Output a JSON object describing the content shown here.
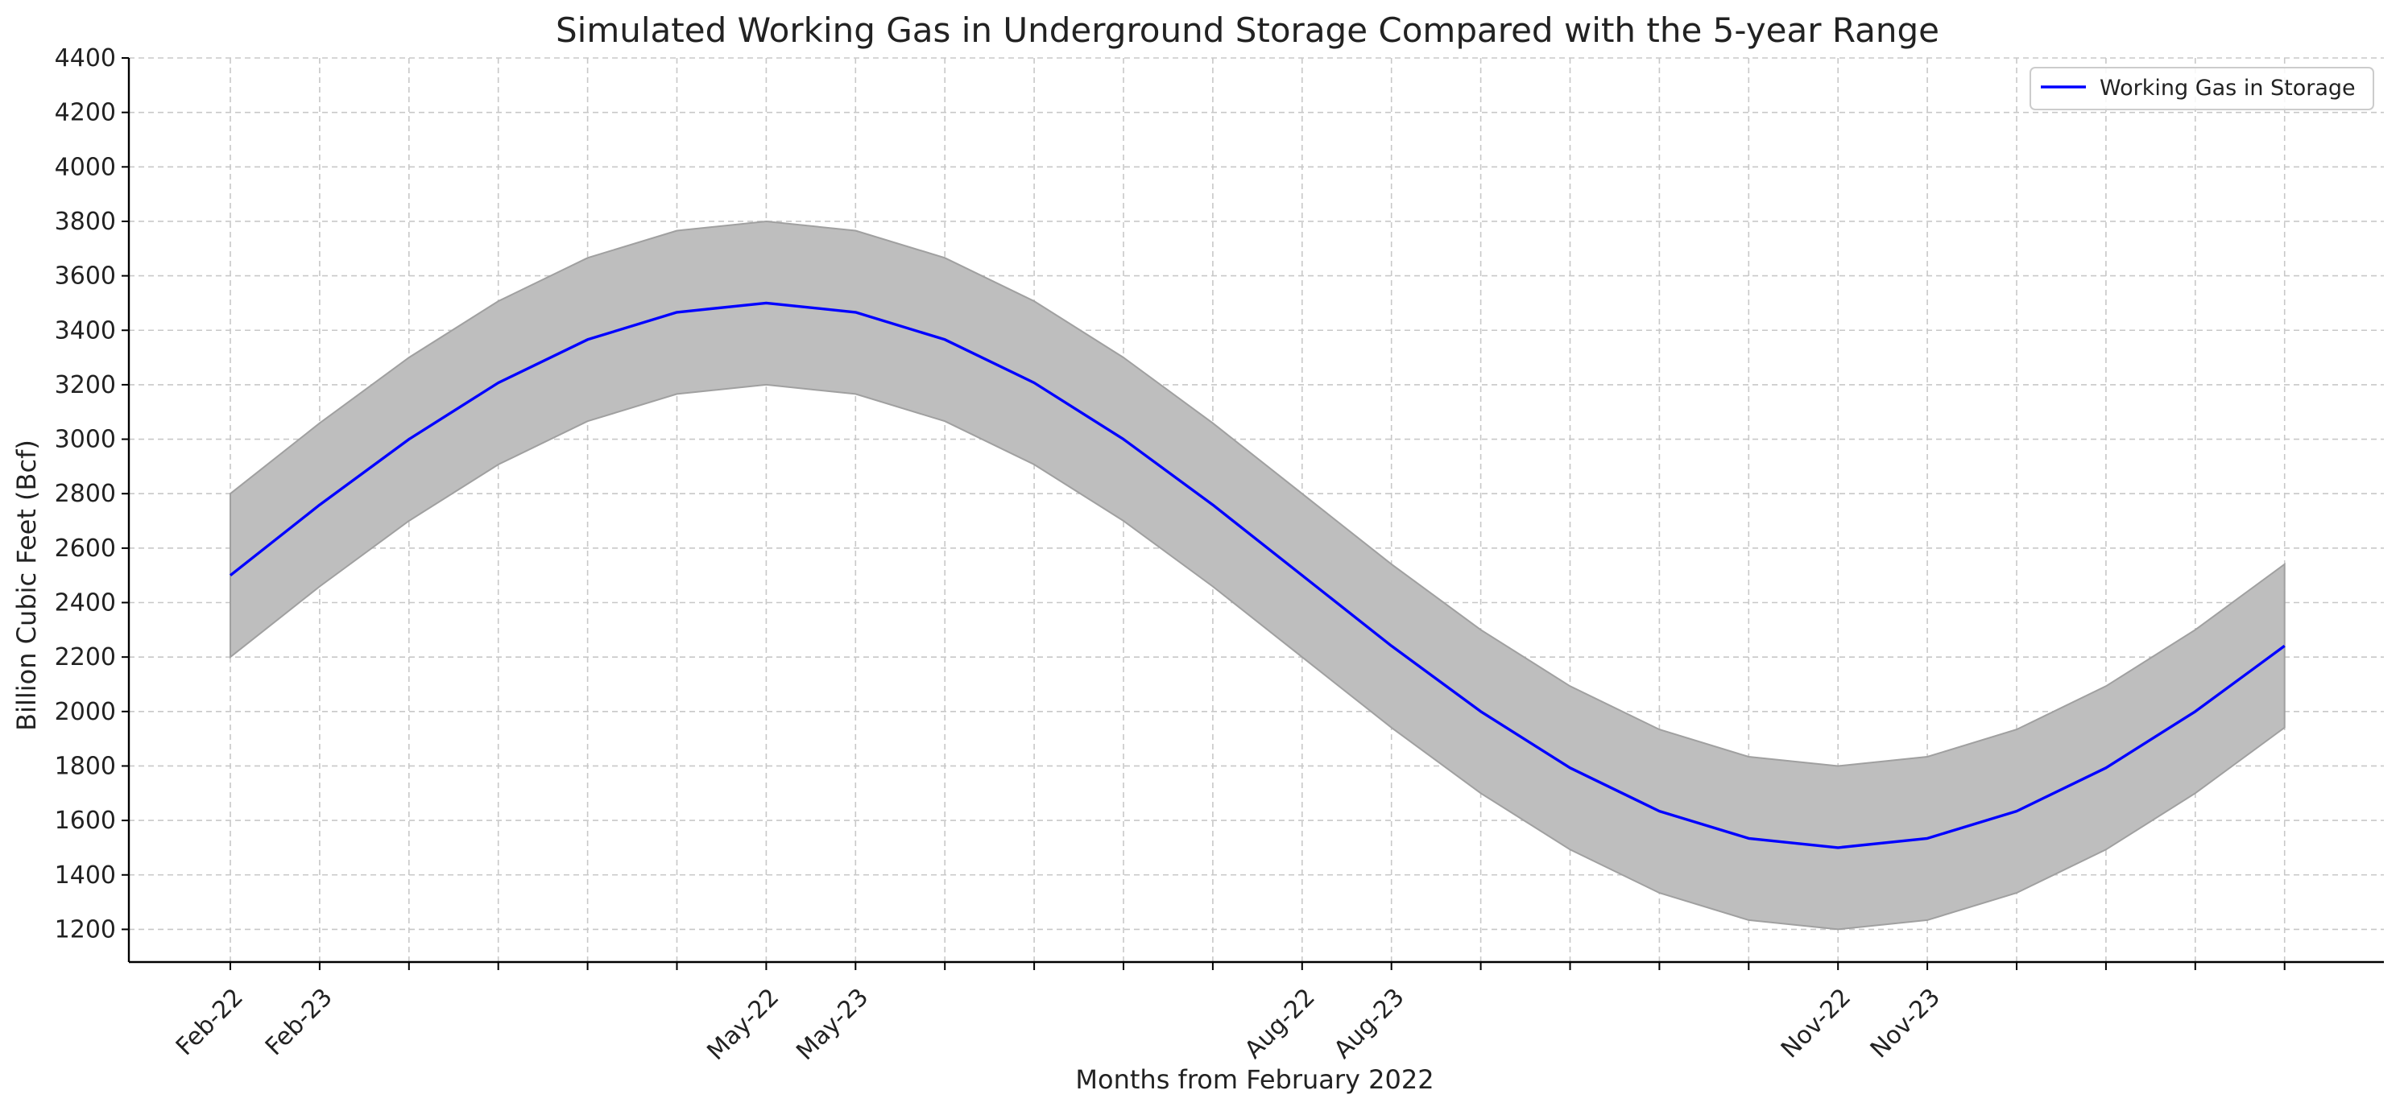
{
  "chart_data": {
    "type": "line",
    "title": "Simulated Working Gas in Underground Storage Compared with the 5-year Range",
    "xlabel": "Months from February 2022",
    "ylabel": "Billion Cubic Feet (Bcf)",
    "ylim": [
      1080,
      4400
    ],
    "y_ticks": [
      1200,
      1400,
      1600,
      1800,
      2000,
      2200,
      2400,
      2600,
      2800,
      3000,
      3200,
      3400,
      3600,
      3800,
      4000,
      4200,
      4400
    ],
    "x_index": [
      0,
      1,
      2,
      3,
      4,
      5,
      6,
      7,
      8,
      9,
      10,
      11,
      12,
      13,
      14,
      15,
      16,
      17,
      18,
      19,
      20,
      21,
      22,
      23
    ],
    "x_tick_labels": [
      {
        "index": 0,
        "label": "Feb-22"
      },
      {
        "index": 1,
        "label": "Feb-23"
      },
      {
        "index": 6,
        "label": "May-22"
      },
      {
        "index": 7,
        "label": "May-23"
      },
      {
        "index": 12,
        "label": "Aug-22"
      },
      {
        "index": 13,
        "label": "Aug-23"
      },
      {
        "index": 18,
        "label": "Nov-22"
      },
      {
        "index": 19,
        "label": "Nov-23"
      }
    ],
    "series": [
      {
        "name": "Working Gas in Storage",
        "color": "#0000ff",
        "values": [
          2500,
          2759,
          3000,
          3207,
          3366,
          3466,
          3500,
          3466,
          3366,
          3207,
          3000,
          2759,
          2500,
          2241,
          2000,
          1793,
          1634,
          1534,
          1500,
          1534,
          1634,
          1793,
          2000,
          2241
        ]
      }
    ],
    "range_band": {
      "color": "#bebebe",
      "edge_color": "#a0a0a0",
      "lower": [
        2200,
        2459,
        2700,
        2907,
        3066,
        3166,
        3200,
        3166,
        3066,
        2907,
        2700,
        2459,
        2200,
        1941,
        1700,
        1493,
        1334,
        1234,
        1200,
        1234,
        1334,
        1493,
        1700,
        1941
      ],
      "upper": [
        2800,
        3059,
        3300,
        3507,
        3666,
        3766,
        3800,
        3766,
        3666,
        3507,
        3300,
        3059,
        2800,
        2541,
        2300,
        2093,
        1934,
        1834,
        1800,
        1834,
        1934,
        2093,
        2300,
        2541
      ]
    },
    "grid": true,
    "legend_position": "top-right"
  }
}
